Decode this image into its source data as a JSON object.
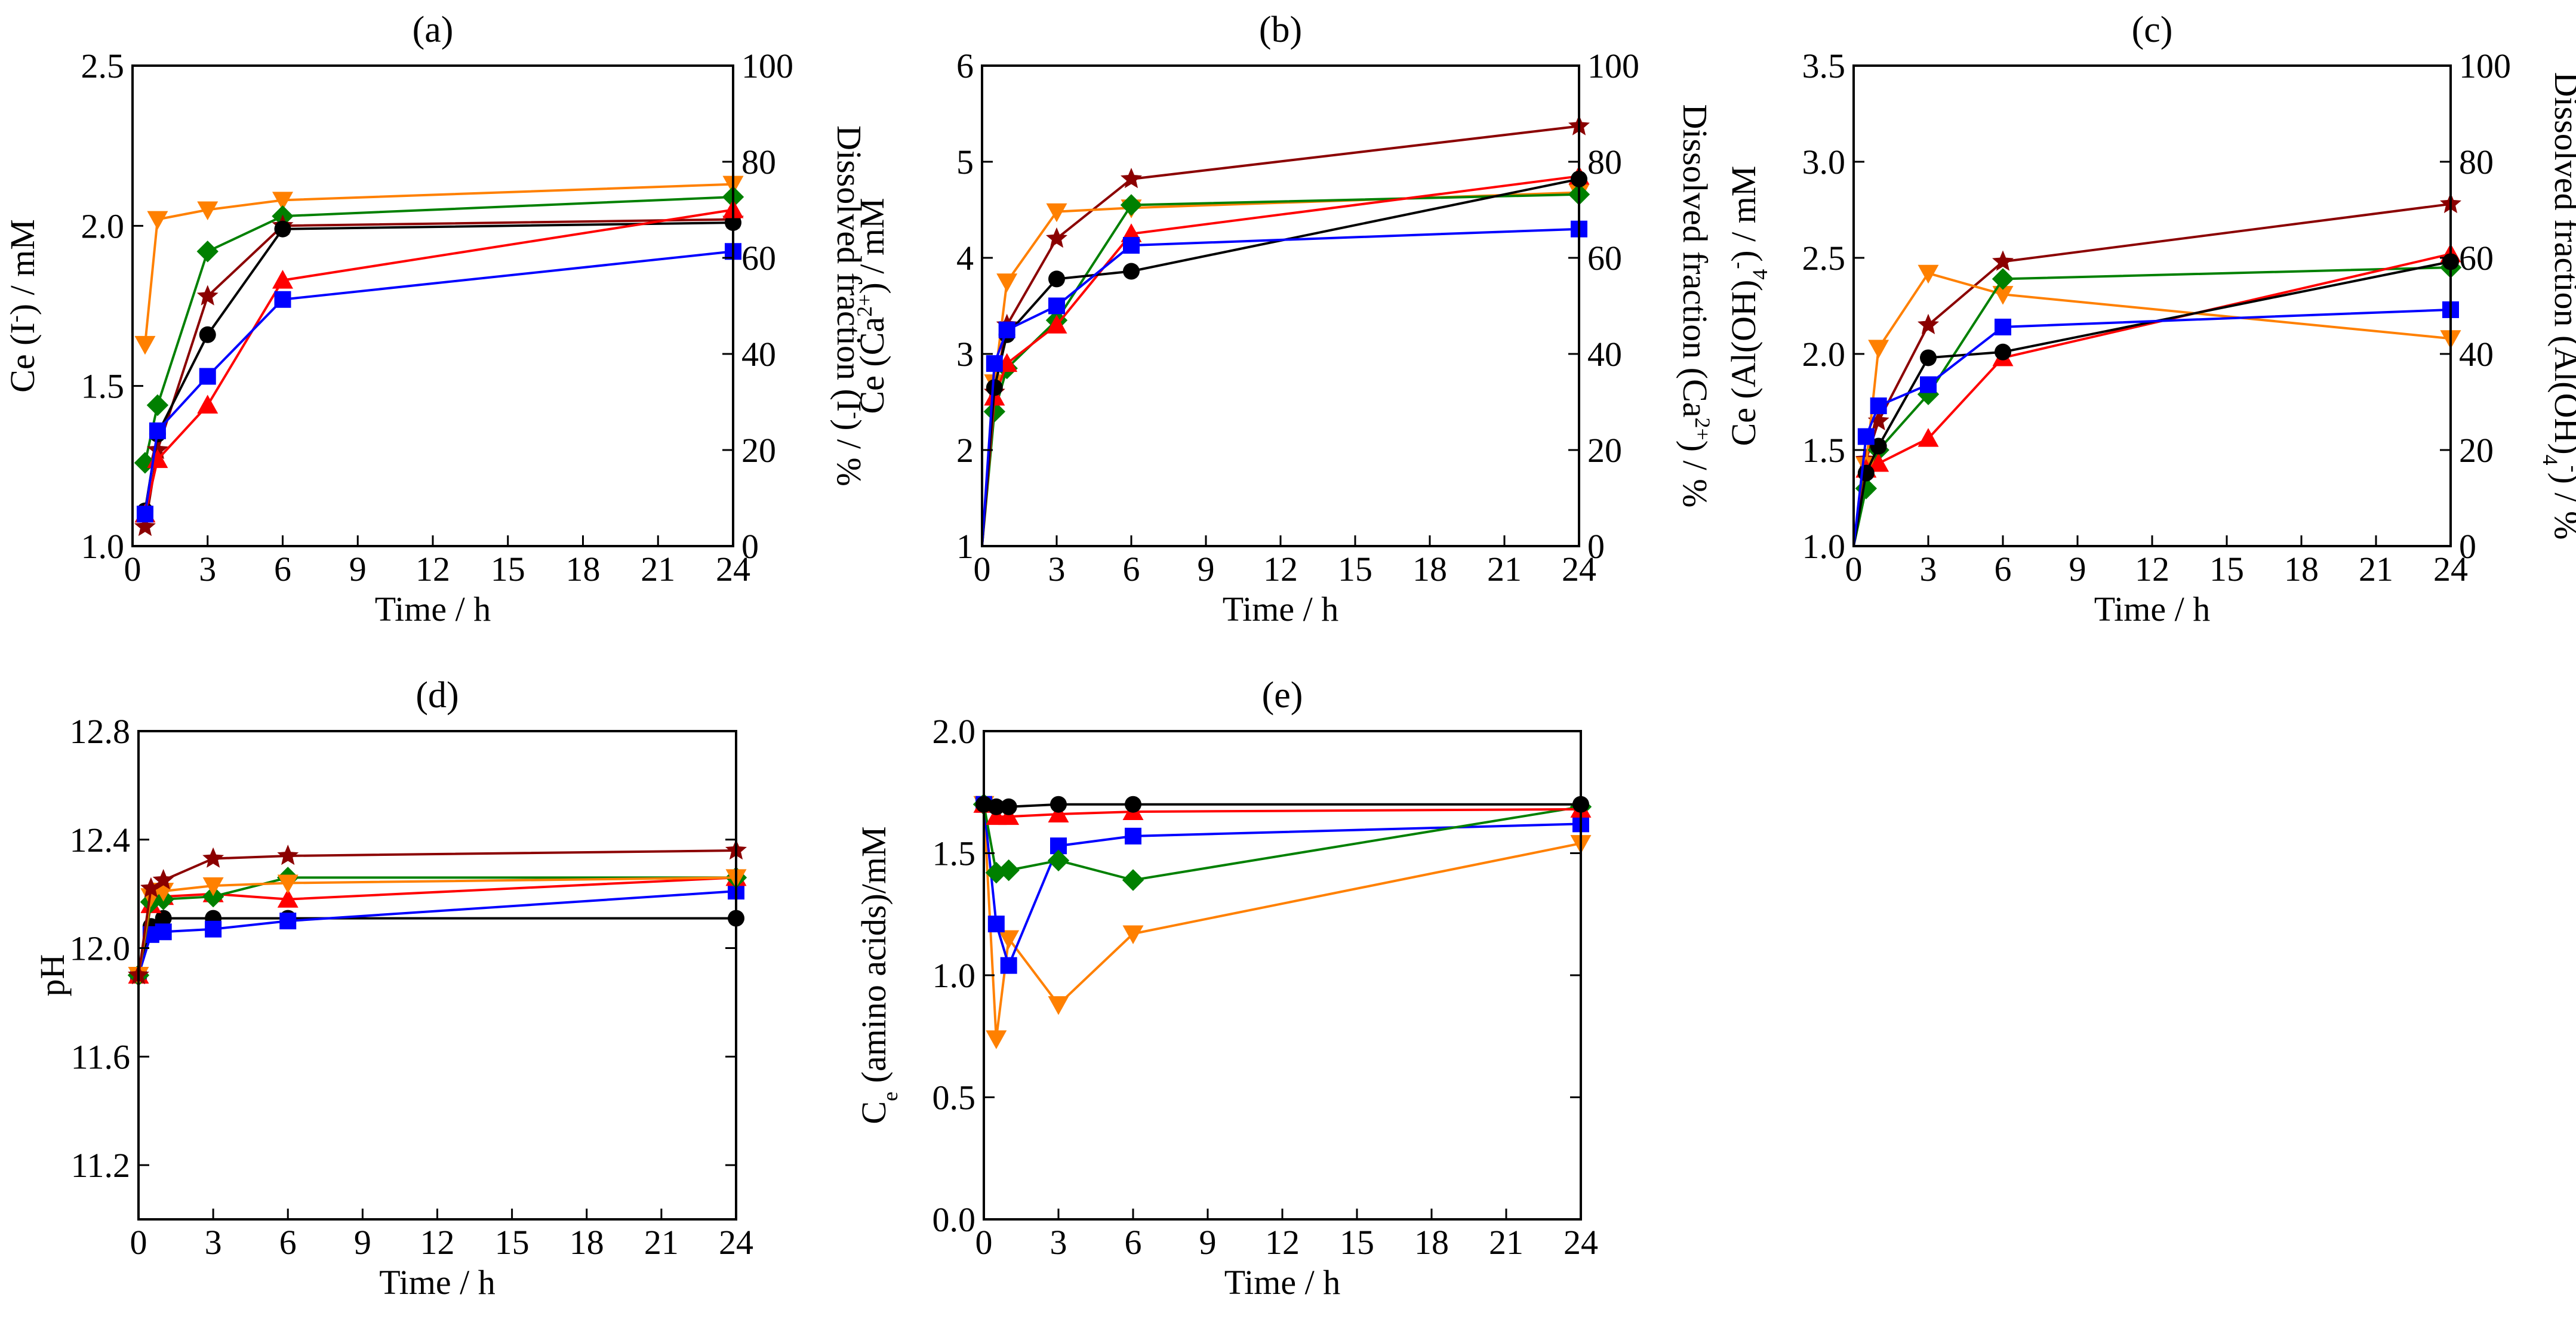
{
  "colors": {
    "black": "#000000",
    "red": "#ff0000",
    "blue": "#0000ff",
    "green": "#008000",
    "orange": "#ff8000",
    "darkred": "#8b0000"
  },
  "chart_data": [
    {
      "id": "a",
      "type": "line",
      "title": "(a)",
      "xlabel": "Time / h",
      "ylabel_parts": [
        [
          "Ce (I",
          ""
        ],
        [
          "-",
          "sup"
        ],
        [
          ") / mM",
          ""
        ]
      ],
      "y2label_parts": [
        [
          "Dissolved fraction (I",
          ""
        ],
        [
          "-",
          "sup"
        ],
        [
          ") / %",
          ""
        ]
      ],
      "xlim": [
        0,
        24
      ],
      "xticks": [
        0,
        3,
        6,
        9,
        12,
        15,
        18,
        21,
        24
      ],
      "ylim": [
        1.0,
        2.5
      ],
      "yticks": [
        1.0,
        1.5,
        2.0,
        2.5
      ],
      "yfmt": 1,
      "y2lim": [
        0,
        100
      ],
      "y2ticks": [
        0,
        20,
        40,
        60,
        80,
        100
      ],
      "series": [
        {
          "name": "orange",
          "marker": "tri-down",
          "x": [
            0.5,
            1,
            3,
            6,
            24
          ],
          "y": [
            1.63,
            2.02,
            2.05,
            2.08,
            2.13
          ]
        },
        {
          "name": "green",
          "marker": "diamond",
          "x": [
            0.5,
            1,
            3,
            6,
            24
          ],
          "y": [
            1.26,
            1.44,
            1.92,
            2.03,
            2.09
          ]
        },
        {
          "name": "darkred",
          "marker": "star",
          "x": [
            0.5,
            1,
            3,
            6,
            24
          ],
          "y": [
            1.06,
            1.3,
            1.78,
            2.0,
            2.02
          ]
        },
        {
          "name": "black",
          "marker": "circle",
          "x": [
            0.5,
            1,
            3,
            6,
            24
          ],
          "y": [
            1.11,
            1.35,
            1.66,
            1.99,
            2.01
          ]
        },
        {
          "name": "red",
          "marker": "tri-up",
          "x": [
            0.5,
            1,
            3,
            6,
            24
          ],
          "y": [
            1.1,
            1.27,
            1.44,
            1.83,
            2.05
          ]
        },
        {
          "name": "blue",
          "marker": "square",
          "x": [
            0.5,
            1,
            3,
            6,
            24
          ],
          "y": [
            1.1,
            1.36,
            1.53,
            1.77,
            1.92
          ]
        }
      ]
    },
    {
      "id": "b",
      "type": "line",
      "title": "(b)",
      "xlabel": "Time / h",
      "ylabel_parts": [
        [
          "Ce (Ca",
          ""
        ],
        [
          "2+",
          "sup"
        ],
        [
          ") / mM",
          ""
        ]
      ],
      "y2label_parts": [
        [
          "Dissolved fraction (Ca",
          ""
        ],
        [
          "2+",
          "sup"
        ],
        [
          ") / %",
          ""
        ]
      ],
      "xlim": [
        0,
        24
      ],
      "xticks": [
        0,
        3,
        6,
        9,
        12,
        15,
        18,
        21,
        24
      ],
      "ylim": [
        1,
        6
      ],
      "yticks": [
        1,
        2,
        3,
        4,
        5,
        6
      ],
      "yfmt": 0,
      "y2lim": [
        0,
        100
      ],
      "y2ticks": [
        0,
        20,
        40,
        60,
        80,
        100
      ],
      "series": [
        {
          "name": "darkred",
          "marker": "star",
          "x": [
            0,
            0.5,
            1,
            3,
            6,
            24
          ],
          "y": [
            1.0,
            2.6,
            3.3,
            4.2,
            4.82,
            5.37
          ]
        },
        {
          "name": "orange",
          "marker": "tri-down",
          "x": [
            0,
            0.5,
            1,
            3,
            6,
            24
          ],
          "y": [
            1.0,
            2.7,
            3.75,
            4.48,
            4.52,
            4.68
          ]
        },
        {
          "name": "green",
          "marker": "diamond",
          "x": [
            0,
            0.5,
            1,
            3,
            6,
            24
          ],
          "y": [
            1.0,
            2.4,
            2.85,
            3.35,
            4.55,
            4.66
          ]
        },
        {
          "name": "red",
          "marker": "tri-up",
          "x": [
            0,
            0.5,
            1,
            3,
            6,
            24
          ],
          "y": [
            1.0,
            2.55,
            2.9,
            3.3,
            4.25,
            4.85
          ]
        },
        {
          "name": "black",
          "marker": "circle",
          "x": [
            0,
            0.5,
            1,
            3,
            6,
            24
          ],
          "y": [
            1.0,
            2.65,
            3.2,
            3.78,
            3.86,
            4.82
          ]
        },
        {
          "name": "blue",
          "marker": "square",
          "x": [
            0,
            0.5,
            1,
            3,
            6,
            24
          ],
          "y": [
            1.0,
            2.9,
            3.25,
            3.5,
            4.13,
            4.3
          ]
        }
      ]
    },
    {
      "id": "c",
      "type": "line",
      "title": "(c)",
      "xlabel": "Time / h",
      "ylabel_parts": [
        [
          "Ce (Al(OH)",
          ""
        ],
        [
          "4",
          "sub"
        ],
        [
          "-",
          "sup"
        ],
        [
          ") / mM",
          ""
        ]
      ],
      "y2label_parts": [
        [
          "Dissolved fraction (Al(OH)",
          ""
        ],
        [
          "4",
          "sub"
        ],
        [
          "-",
          "sup"
        ],
        [
          ") / %",
          ""
        ]
      ],
      "xlim": [
        0,
        24
      ],
      "xticks": [
        0,
        3,
        6,
        9,
        12,
        15,
        18,
        21,
        24
      ],
      "ylim": [
        1.0,
        3.5
      ],
      "yticks": [
        1.0,
        1.5,
        2.0,
        2.5,
        3.0,
        3.5
      ],
      "yfmt": 1,
      "y2lim": [
        0,
        100
      ],
      "y2ticks": [
        0,
        20,
        40,
        60,
        80,
        100
      ],
      "series": [
        {
          "name": "darkred",
          "marker": "star",
          "x": [
            0,
            0.5,
            1,
            3,
            6,
            24
          ],
          "y": [
            1.0,
            1.45,
            1.65,
            2.15,
            2.48,
            2.78
          ]
        },
        {
          "name": "orange",
          "marker": "tri-down",
          "x": [
            0,
            0.5,
            1,
            3,
            6,
            24
          ],
          "y": [
            1.0,
            1.42,
            2.03,
            2.42,
            2.31,
            2.08
          ]
        },
        {
          "name": "green",
          "marker": "diamond",
          "x": [
            0,
            0.5,
            1,
            3,
            6,
            24
          ],
          "y": [
            1.0,
            1.3,
            1.5,
            1.79,
            2.39,
            2.45
          ]
        },
        {
          "name": "red",
          "marker": "tri-up",
          "x": [
            0,
            0.5,
            1,
            3,
            6,
            24
          ],
          "y": [
            1.0,
            1.4,
            1.43,
            1.56,
            1.98,
            2.52
          ]
        },
        {
          "name": "black",
          "marker": "circle",
          "x": [
            0,
            0.5,
            1,
            3,
            6,
            24
          ],
          "y": [
            1.0,
            1.38,
            1.52,
            1.98,
            2.01,
            2.48
          ]
        },
        {
          "name": "blue",
          "marker": "square",
          "x": [
            0,
            0.5,
            1,
            3,
            6,
            24
          ],
          "y": [
            1.0,
            1.57,
            1.73,
            1.84,
            2.14,
            2.23
          ]
        }
      ]
    },
    {
      "id": "d",
      "type": "line",
      "title": "(d)",
      "xlabel": "Time / h",
      "ylabel_parts": [
        [
          "pH",
          ""
        ]
      ],
      "xlim": [
        0,
        24
      ],
      "xticks": [
        0,
        3,
        6,
        9,
        12,
        15,
        18,
        21,
        24
      ],
      "ylim": [
        11.0,
        12.8
      ],
      "yticks": [
        11.2,
        11.6,
        12.0,
        12.4,
        12.8
      ],
      "yfmt": 1,
      "series": [
        {
          "name": "black",
          "marker": "circle",
          "x": [
            0,
            0.5,
            1,
            3,
            6,
            24
          ],
          "y": [
            11.9,
            12.08,
            12.11,
            12.11,
            12.11,
            12.11
          ]
        },
        {
          "name": "blue",
          "marker": "square",
          "x": [
            0,
            0.5,
            1,
            3,
            6,
            24
          ],
          "y": [
            11.9,
            12.05,
            12.06,
            12.07,
            12.1,
            12.21
          ]
        },
        {
          "name": "red",
          "marker": "tri-up",
          "x": [
            0,
            0.5,
            1,
            3,
            6,
            24
          ],
          "y": [
            11.9,
            12.16,
            12.19,
            12.2,
            12.18,
            12.26
          ]
        },
        {
          "name": "green",
          "marker": "diamond",
          "x": [
            0,
            0.5,
            1,
            3,
            6,
            24
          ],
          "y": [
            11.9,
            12.17,
            12.18,
            12.19,
            12.26,
            12.26
          ]
        },
        {
          "name": "orange",
          "marker": "tri-down",
          "x": [
            0,
            0.5,
            1,
            3,
            6,
            24
          ],
          "y": [
            11.9,
            12.19,
            12.21,
            12.23,
            12.24,
            12.26
          ]
        },
        {
          "name": "darkred",
          "marker": "star",
          "x": [
            0,
            0.5,
            1,
            3,
            6,
            24
          ],
          "y": [
            11.9,
            12.22,
            12.25,
            12.33,
            12.34,
            12.36
          ]
        }
      ]
    },
    {
      "id": "e",
      "type": "line",
      "title": "(e)",
      "xlabel": "Time / h",
      "ylabel_parts": [
        [
          "C",
          ""
        ],
        [
          "e",
          "sub"
        ],
        [
          " (amino acids)/mM",
          ""
        ]
      ],
      "xlim": [
        0,
        24
      ],
      "xticks": [
        0,
        3,
        6,
        9,
        12,
        15,
        18,
        21,
        24
      ],
      "ylim": [
        0.0,
        2.0
      ],
      "yticks": [
        0.0,
        0.5,
        1.0,
        1.5,
        2.0
      ],
      "yfmt": 1,
      "series": [
        {
          "name": "orange",
          "marker": "tri-down",
          "x": [
            0,
            0.5,
            1,
            3,
            6,
            24
          ],
          "y": [
            1.7,
            0.74,
            1.15,
            0.88,
            1.17,
            1.54
          ]
        },
        {
          "name": "blue",
          "marker": "square",
          "x": [
            0,
            0.5,
            1,
            3,
            6,
            24
          ],
          "y": [
            1.7,
            1.21,
            1.04,
            1.53,
            1.57,
            1.62
          ]
        },
        {
          "name": "green",
          "marker": "diamond",
          "x": [
            0,
            0.5,
            1,
            3,
            6,
            24
          ],
          "y": [
            1.7,
            1.42,
            1.43,
            1.47,
            1.39,
            1.69
          ]
        },
        {
          "name": "red",
          "marker": "tri-up",
          "x": [
            0,
            0.5,
            1,
            3,
            6,
            24
          ],
          "y": [
            1.7,
            1.65,
            1.65,
            1.66,
            1.67,
            1.68
          ]
        },
        {
          "name": "black",
          "marker": "circle",
          "x": [
            0,
            0.5,
            1,
            3,
            6,
            24
          ],
          "y": [
            1.7,
            1.69,
            1.69,
            1.7,
            1.7,
            1.7
          ]
        }
      ]
    }
  ]
}
